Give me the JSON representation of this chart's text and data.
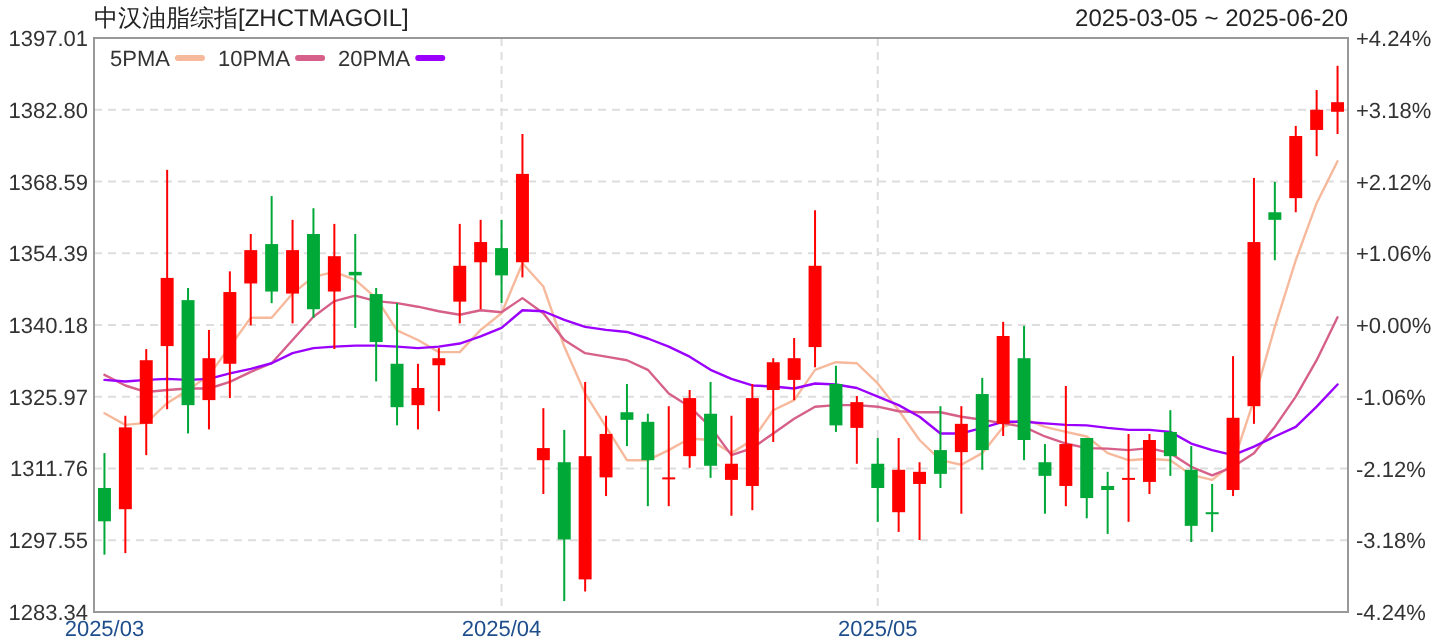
{
  "chart_data": {
    "type": "candlestick",
    "title": "中汉油脂综指[ZHCTMAGOIL]",
    "subtitle": "2025-03-05 ~ 2025-06-20",
    "categories": [
      "2025/03",
      null,
      null,
      null,
      null,
      null,
      null,
      null,
      null,
      null,
      null,
      null,
      null,
      null,
      null,
      null,
      null,
      null,
      null,
      "2025/04",
      null,
      null,
      null,
      null,
      null,
      null,
      null,
      null,
      null,
      null,
      null,
      null,
      null,
      null,
      null,
      null,
      null,
      "2025/05",
      null,
      null,
      null,
      null,
      null,
      null,
      null,
      null,
      null,
      null,
      null,
      null,
      null,
      null,
      null,
      null,
      null,
      null,
      null,
      null,
      null,
      null
    ],
    "ohlc": [
      [
        1307.9,
        1314.8,
        1294.7,
        1301.3
      ],
      [
        1303.7,
        1322.2,
        1295.0,
        1319.9
      ],
      [
        1320.6,
        1335.4,
        1314.4,
        1333.2
      ],
      [
        1336.0,
        1370.9,
        1323.5,
        1349.5
      ],
      [
        1345.1,
        1347.5,
        1318.7,
        1324.3
      ],
      [
        1325.3,
        1339.2,
        1319.5,
        1333.6
      ],
      [
        1332.5,
        1350.8,
        1325.7,
        1346.7
      ],
      [
        1348.4,
        1358.2,
        1340.1,
        1355.0
      ],
      [
        1356.2,
        1365.7,
        1344.5,
        1346.8
      ],
      [
        1346.4,
        1361.0,
        1340.5,
        1355.0
      ],
      [
        1358.2,
        1363.3,
        1341.6,
        1343.3
      ],
      [
        1346.8,
        1360.2,
        1335.4,
        1353.8
      ],
      [
        1350.7,
        1358.2,
        1339.6,
        1350.0
      ],
      [
        1346.3,
        1347.5,
        1329.0,
        1336.8
      ],
      [
        1332.5,
        1344.5,
        1320.3,
        1323.9
      ],
      [
        1324.3,
        1332.5,
        1319.5,
        1327.7
      ],
      [
        1332.2,
        1335.6,
        1323.1,
        1333.6
      ],
      [
        1344.8,
        1360.2,
        1340.5,
        1351.9
      ],
      [
        1352.6,
        1361.0,
        1343.3,
        1356.6
      ],
      [
        1355.4,
        1361.0,
        1344.5,
        1350.0
      ],
      [
        1352.6,
        1378.0,
        1349.6,
        1370.1
      ],
      [
        1313.4,
        1323.7,
        1306.7,
        1315.8
      ],
      [
        1313.0,
        1319.4,
        1285.5,
        1297.7
      ],
      [
        1289.8,
        1328.9,
        1287.4,
        1314.2
      ],
      [
        1310.0,
        1322.2,
        1306.3,
        1318.6
      ],
      [
        1322.9,
        1328.5,
        1316.2,
        1321.4
      ],
      [
        1321.0,
        1322.6,
        1304.3,
        1313.4
      ],
      [
        1309.6,
        1324.1,
        1304.3,
        1310.0
      ],
      [
        1314.2,
        1327.3,
        1311.9,
        1325.7
      ],
      [
        1322.6,
        1328.9,
        1309.9,
        1312.3
      ],
      [
        1309.5,
        1322.2,
        1302.4,
        1312.7
      ],
      [
        1308.3,
        1328.5,
        1303.5,
        1325.7
      ],
      [
        1327.3,
        1333.6,
        1317.0,
        1332.8
      ],
      [
        1329.3,
        1337.6,
        1325.3,
        1333.6
      ],
      [
        1335.8,
        1362.9,
        1331.8,
        1351.9
      ],
      [
        1328.5,
        1332.1,
        1319.0,
        1320.3
      ],
      [
        1319.8,
        1326.1,
        1312.7,
        1324.9
      ],
      [
        1312.7,
        1317.8,
        1301.2,
        1307.9
      ],
      [
        1303.1,
        1317.8,
        1299.2,
        1311.5
      ],
      [
        1308.7,
        1313.0,
        1297.6,
        1311.1
      ],
      [
        1315.4,
        1324.1,
        1307.9,
        1310.7
      ],
      [
        1315.0,
        1324.1,
        1302.8,
        1320.6
      ],
      [
        1326.5,
        1329.7,
        1311.5,
        1315.4
      ],
      [
        1320.6,
        1340.8,
        1318.2,
        1338.0
      ],
      [
        1333.6,
        1340.0,
        1313.4,
        1317.4
      ],
      [
        1313.0,
        1316.6,
        1302.8,
        1310.3
      ],
      [
        1308.3,
        1328.1,
        1304.3,
        1316.6
      ],
      [
        1317.8,
        1317.8,
        1301.9,
        1305.9
      ],
      [
        1308.3,
        1311.1,
        1298.8,
        1307.5
      ],
      [
        1309.5,
        1318.6,
        1301.2,
        1309.9
      ],
      [
        1309.1,
        1318.6,
        1306.7,
        1317.4
      ],
      [
        1319.0,
        1323.3,
        1310.3,
        1314.2
      ],
      [
        1311.5,
        1316.2,
        1297.2,
        1300.4
      ],
      [
        1303.1,
        1308.7,
        1299.2,
        1302.9
      ],
      [
        1307.5,
        1334.0,
        1306.3,
        1321.8
      ],
      [
        1324.1,
        1369.3,
        1320.6,
        1356.6
      ],
      [
        1362.5,
        1368.5,
        1353.0,
        1361.0
      ],
      [
        1365.3,
        1379.6,
        1362.5,
        1377.6
      ],
      [
        1378.8,
        1386.7,
        1373.6,
        1382.8
      ],
      [
        1382.4,
        1391.5,
        1378.0,
        1384.3
      ]
    ],
    "colors": [
      "#00a838",
      "#ff0000",
      "#ff0000",
      "#ff0000",
      "#00a838",
      "#ff0000",
      "#ff0000",
      "#ff0000",
      "#00a838",
      "#ff0000",
      "#00a838",
      "#ff0000",
      "#00a838",
      "#00a838",
      "#00a838",
      "#ff0000",
      "#ff0000",
      "#ff0000",
      "#ff0000",
      "#00a838",
      "#ff0000",
      "#ff0000",
      "#00a838",
      "#ff0000",
      "#ff0000",
      "#00a838",
      "#00a838",
      "#ff0000",
      "#ff0000",
      "#00a838",
      "#ff0000",
      "#ff0000",
      "#ff0000",
      "#ff0000",
      "#ff0000",
      "#00a838",
      "#ff0000",
      "#00a838",
      "#ff0000",
      "#ff0000",
      "#00a838",
      "#ff0000",
      "#00a838",
      "#ff0000",
      "#00a838",
      "#00a838",
      "#ff0000",
      "#00a838",
      "#00a838",
      "#ff0000",
      "#ff0000",
      "#00a838",
      "#00a838",
      "#00a838",
      "#ff0000",
      "#ff0000",
      "#00a838",
      "#ff0000",
      "#ff0000",
      "#ff0000"
    ],
    "series": [
      {
        "name": "5PMA",
        "type": "line",
        "color": "#f7b99c",
        "values": [
          1322.7,
          1320.4,
          1320.8,
          1324.7,
          1327.3,
          1330.2,
          1335.9,
          1341.6,
          1341.6,
          1346.4,
          1349.7,
          1350.7,
          1349.1,
          1345.5,
          1339.1,
          1337.2,
          1334.8,
          1334.8,
          1339.2,
          1342.5,
          1352.4,
          1347.8,
          1335.9,
          1326.6,
          1320.0,
          1313.4,
          1313.4,
          1315.4,
          1317.7,
          1317.4,
          1314.8,
          1317.4,
          1323.3,
          1325.3,
          1331.3,
          1332.8,
          1332.6,
          1328.6,
          1323.3,
          1317.4,
          1313.4,
          1312.5,
          1314.8,
          1320.0,
          1321.6,
          1320.0,
          1319.0,
          1318.1,
          1314.8,
          1313.4,
          1313.7,
          1313.4,
          1310.5,
          1309.5,
          1312.8,
          1325.3,
          1339.8,
          1353.0,
          1364.3,
          1372.6
        ]
      },
      {
        "name": "10PMA",
        "type": "line",
        "color": "#d6608a",
        "values": [
          1330.3,
          1328.2,
          1326.9,
          1327.3,
          1327.6,
          1327.6,
          1328.9,
          1330.9,
          1332.6,
          1337.2,
          1341.8,
          1344.9,
          1346.0,
          1344.9,
          1344.5,
          1343.8,
          1342.9,
          1342.2,
          1343.1,
          1342.7,
          1345.5,
          1342.5,
          1337.2,
          1334.6,
          1333.9,
          1333.2,
          1331.3,
          1326.6,
          1324.0,
          1320.0,
          1314.4,
          1315.8,
          1318.7,
          1321.6,
          1324.0,
          1324.3,
          1324.3,
          1324.0,
          1323.1,
          1322.9,
          1322.9,
          1322.0,
          1321.4,
          1320.7,
          1320.0,
          1318.1,
          1316.7,
          1315.8,
          1315.7,
          1315.4,
          1315.8,
          1314.8,
          1312.1,
          1310.4,
          1312.1,
          1314.8,
          1320.0,
          1326.0,
          1333.2,
          1341.7
        ]
      },
      {
        "name": "20PMA",
        "type": "line",
        "color": "#9b00ff",
        "values": [
          1329.3,
          1329.0,
          1329.3,
          1329.5,
          1329.3,
          1329.5,
          1330.6,
          1331.5,
          1332.6,
          1334.6,
          1335.6,
          1335.9,
          1336.1,
          1336.1,
          1335.9,
          1335.6,
          1335.9,
          1336.5,
          1337.9,
          1339.6,
          1343.1,
          1342.9,
          1341.2,
          1339.8,
          1339.2,
          1338.8,
          1337.5,
          1335.9,
          1333.9,
          1331.3,
          1329.5,
          1328.2,
          1328.0,
          1327.6,
          1328.6,
          1328.4,
          1327.7,
          1326.0,
          1324.3,
          1322.0,
          1318.7,
          1318.7,
          1319.8,
          1321.0,
          1321.0,
          1320.7,
          1320.4,
          1320.3,
          1319.8,
          1319.4,
          1319.4,
          1319.0,
          1316.7,
          1315.4,
          1314.4,
          1316.1,
          1318.1,
          1320.0,
          1324.0,
          1328.4
        ]
      }
    ],
    "ylim": [
      1283.34,
      1397.01
    ],
    "yticks": [
      1283.34,
      1297.55,
      1311.76,
      1325.97,
      1340.18,
      1354.39,
      1368.59,
      {
        "value": 1382.8,
        "label": "1382.80"
      },
      1397.01
    ],
    "y2lim": [
      -4.24,
      4.24
    ],
    "y2ticks": [
      {
        "value": -4.24,
        "label": "-4.24%"
      },
      {
        "value": -3.18,
        "label": "-3.18%"
      },
      {
        "value": -2.12,
        "label": "-2.12%"
      },
      {
        "value": -1.06,
        "label": "-1.06%"
      },
      {
        "value": 0,
        "label": "+0.00%"
      },
      {
        "value": 1.06,
        "label": "+1.06%"
      },
      {
        "value": 2.12,
        "label": "+2.12%"
      },
      {
        "value": 3.18,
        "label": "+3.18%"
      },
      {
        "value": 4.24,
        "label": "+4.24%"
      }
    ],
    "grid": true,
    "legend": "top left"
  }
}
